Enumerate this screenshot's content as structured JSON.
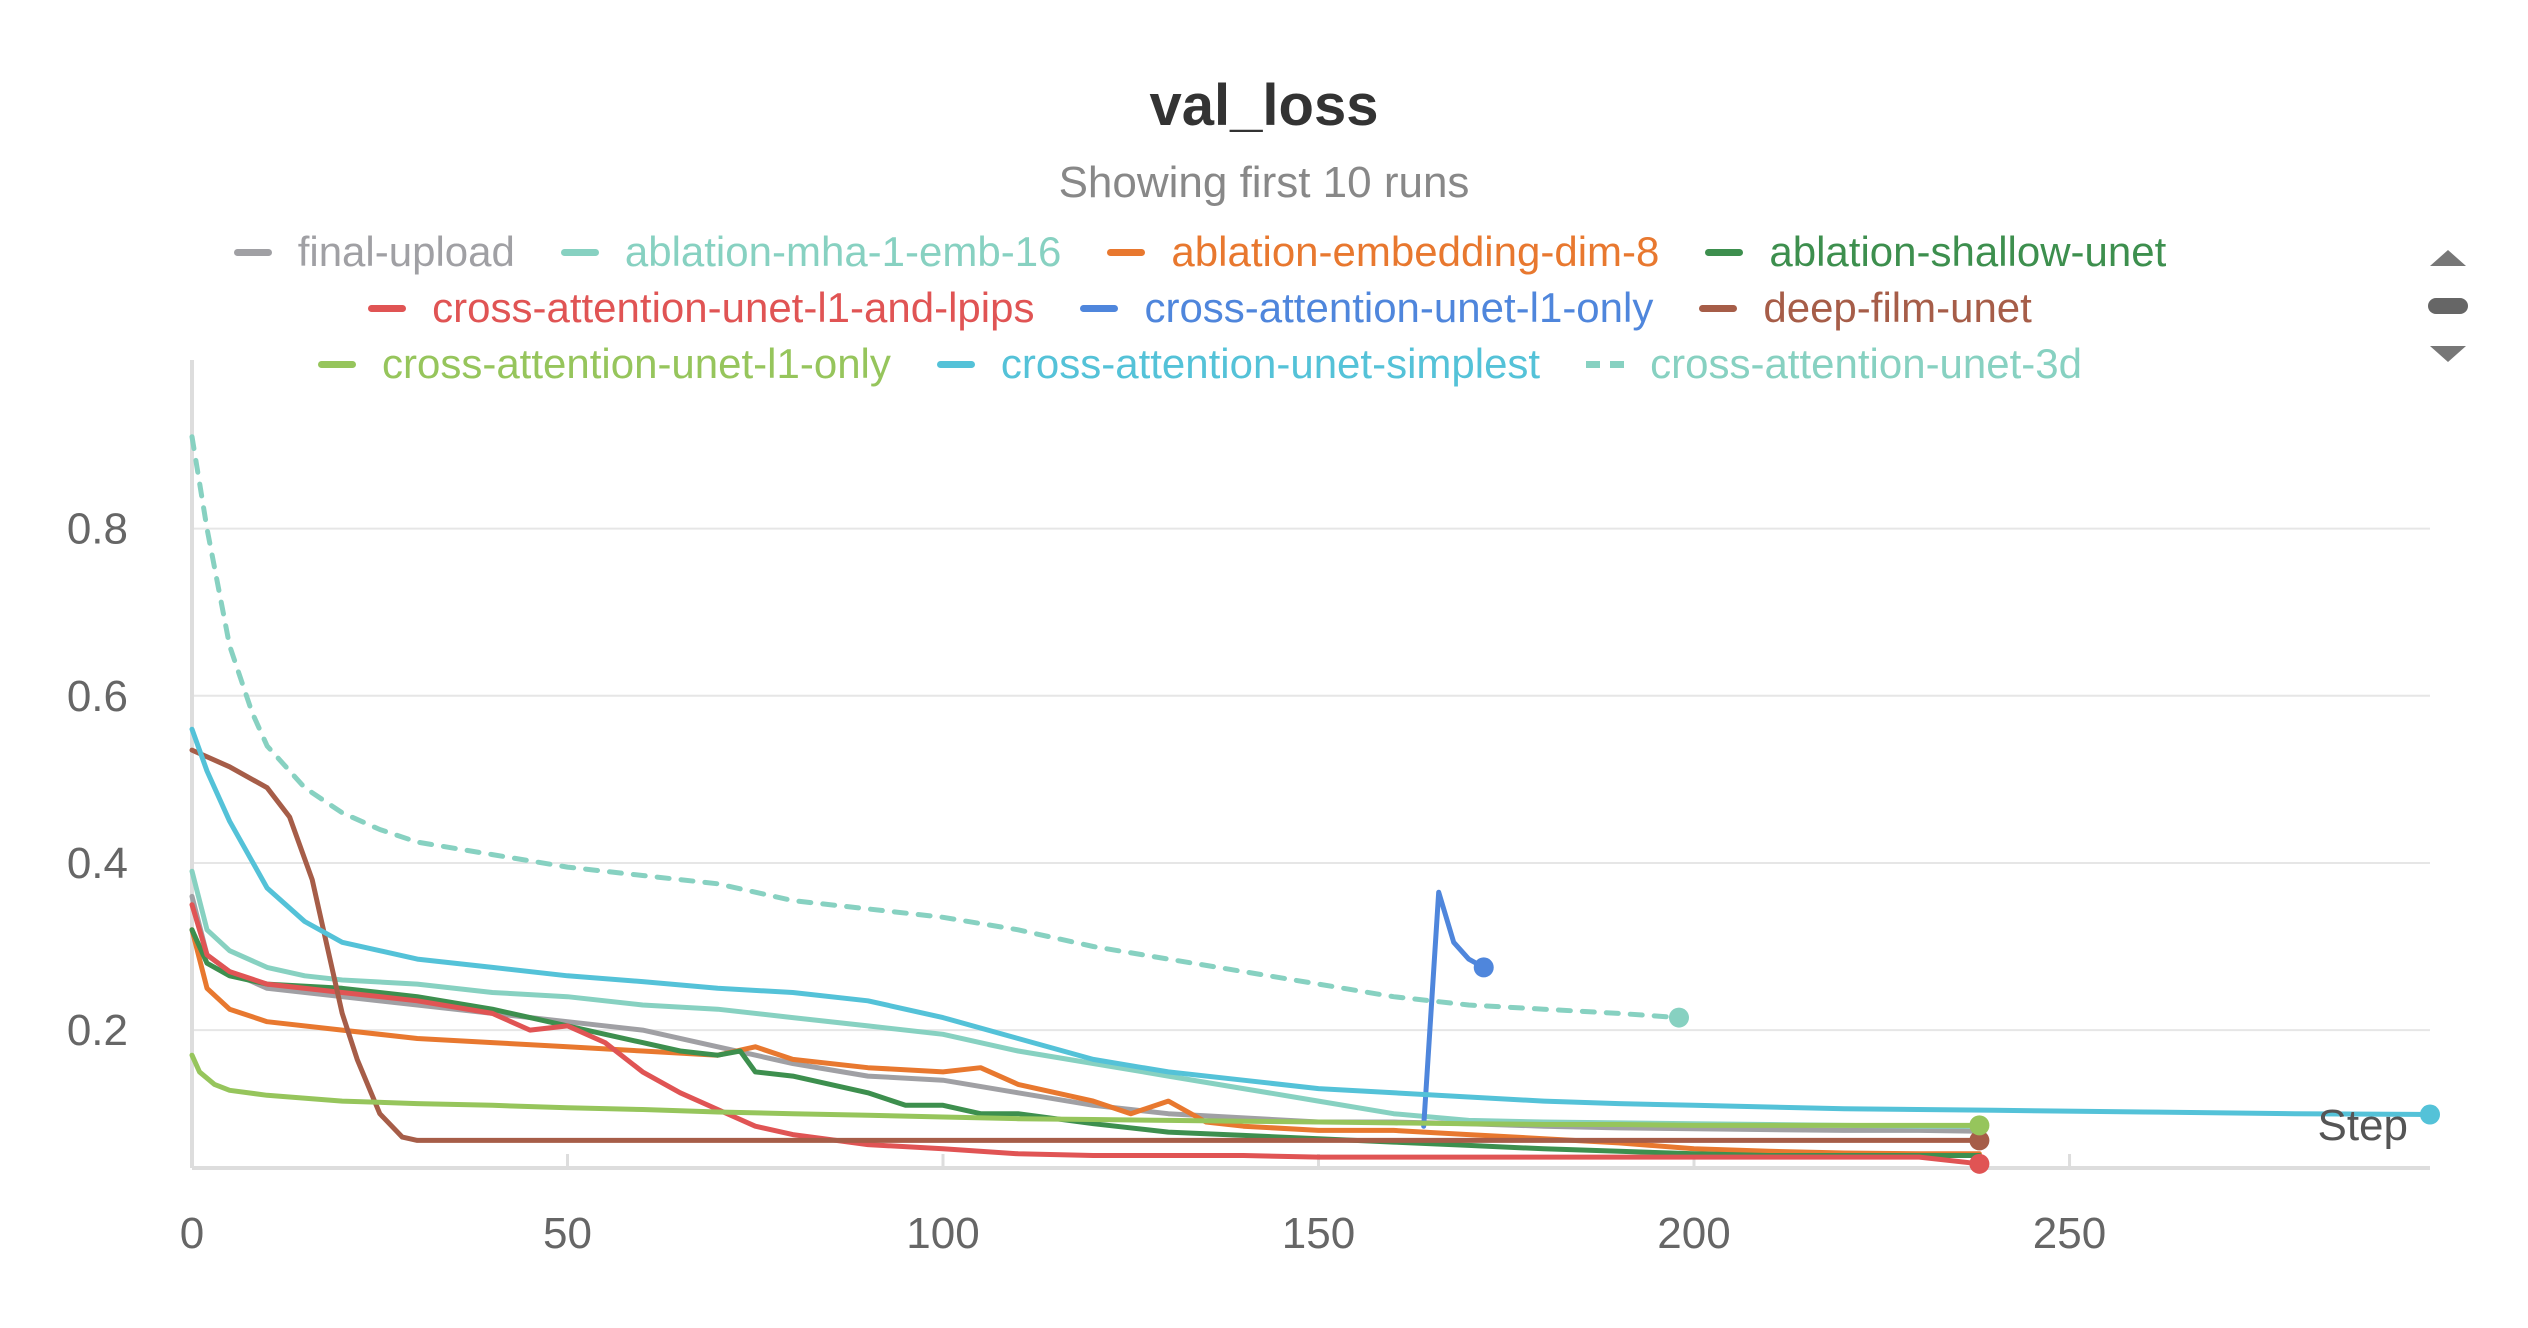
{
  "chart_data": {
    "type": "line",
    "title": "val_loss",
    "subtitle": "Showing first 10 runs",
    "xlabel": "Step",
    "ylabel": "",
    "xlim": [
      0,
      298
    ],
    "ylim": [
      0.035,
      0.93
    ],
    "x_ticks": [
      0,
      50,
      100,
      150,
      200,
      250
    ],
    "y_ticks": [
      0.2,
      0.4,
      0.6,
      0.8
    ],
    "grid": true,
    "legend_placement": "top",
    "series": [
      {
        "name": "final-upload",
        "color": "#a0a0a4",
        "dashed": false,
        "end_marker": false,
        "x": [
          0,
          2,
          5,
          10,
          20,
          30,
          40,
          50,
          60,
          70,
          80,
          90,
          100,
          110,
          120,
          125,
          130,
          140,
          150,
          160,
          170,
          180,
          190,
          200,
          210,
          220,
          230,
          238
        ],
        "y": [
          0.36,
          0.29,
          0.27,
          0.25,
          0.24,
          0.23,
          0.22,
          0.21,
          0.2,
          0.18,
          0.16,
          0.145,
          0.14,
          0.125,
          0.11,
          0.105,
          0.1,
          0.095,
          0.09,
          0.09,
          0.088,
          0.085,
          0.083,
          0.082,
          0.081,
          0.08,
          0.08,
          0.079
        ]
      },
      {
        "name": "ablation-mha-1-emb-16",
        "color": "#87d1c1",
        "dashed": false,
        "end_marker": false,
        "x": [
          0,
          2,
          5,
          10,
          15,
          20,
          30,
          40,
          50,
          60,
          70,
          80,
          90,
          100,
          110,
          120,
          130,
          140,
          150,
          160,
          170,
          180,
          190,
          200,
          210,
          220,
          230,
          238
        ],
        "y": [
          0.39,
          0.32,
          0.295,
          0.275,
          0.265,
          0.26,
          0.255,
          0.245,
          0.24,
          0.23,
          0.225,
          0.215,
          0.205,
          0.195,
          0.175,
          0.16,
          0.145,
          0.13,
          0.115,
          0.1,
          0.092,
          0.09,
          0.089,
          0.088,
          0.087,
          0.086,
          0.085,
          0.085
        ]
      },
      {
        "name": "ablation-embedding-dim-8",
        "color": "#e8782f",
        "dashed": false,
        "end_marker": false,
        "x": [
          0,
          2,
          5,
          10,
          20,
          30,
          40,
          50,
          60,
          70,
          75,
          80,
          90,
          100,
          105,
          110,
          120,
          125,
          130,
          135,
          140,
          150,
          160,
          170,
          180,
          190,
          200,
          210,
          220,
          230,
          238
        ],
        "y": [
          0.32,
          0.25,
          0.225,
          0.21,
          0.2,
          0.19,
          0.185,
          0.18,
          0.175,
          0.17,
          0.18,
          0.165,
          0.155,
          0.15,
          0.155,
          0.135,
          0.115,
          0.1,
          0.115,
          0.09,
          0.085,
          0.08,
          0.08,
          0.075,
          0.07,
          0.065,
          0.058,
          0.055,
          0.053,
          0.052,
          0.052
        ]
      },
      {
        "name": "ablation-shallow-unet",
        "color": "#3d8f4e",
        "dashed": false,
        "end_marker": false,
        "x": [
          0,
          2,
          5,
          10,
          20,
          30,
          40,
          50,
          60,
          65,
          70,
          73,
          75,
          80,
          90,
          95,
          100,
          105,
          110,
          120,
          130,
          140,
          150,
          160,
          170,
          180,
          190,
          200,
          210,
          220,
          230,
          238
        ],
        "y": [
          0.32,
          0.28,
          0.265,
          0.255,
          0.25,
          0.24,
          0.225,
          0.205,
          0.185,
          0.175,
          0.17,
          0.175,
          0.15,
          0.145,
          0.125,
          0.11,
          0.11,
          0.1,
          0.1,
          0.088,
          0.078,
          0.074,
          0.07,
          0.066,
          0.062,
          0.058,
          0.055,
          0.052,
          0.05,
          0.05,
          0.05,
          0.05
        ]
      },
      {
        "name": "cross-attention-unet-l1-and-lpips",
        "color": "#e05454",
        "dashed": false,
        "end_marker": true,
        "x": [
          0,
          2,
          5,
          10,
          20,
          30,
          40,
          45,
          50,
          55,
          60,
          65,
          70,
          75,
          80,
          90,
          100,
          110,
          120,
          130,
          140,
          150,
          160,
          170,
          180,
          190,
          200,
          210,
          220,
          230,
          238
        ],
        "y": [
          0.35,
          0.29,
          0.27,
          0.255,
          0.245,
          0.235,
          0.22,
          0.2,
          0.205,
          0.185,
          0.15,
          0.125,
          0.105,
          0.085,
          0.075,
          0.063,
          0.058,
          0.052,
          0.05,
          0.05,
          0.05,
          0.048,
          0.048,
          0.048,
          0.048,
          0.048,
          0.048,
          0.048,
          0.048,
          0.048,
          0.04
        ]
      },
      {
        "name": "cross-attention-unet-l1-only",
        "color": "#4f86dc",
        "dashed": false,
        "end_marker": true,
        "x": [
          164,
          166,
          168,
          170,
          172
        ],
        "y": [
          0.085,
          0.365,
          0.305,
          0.285,
          0.275
        ]
      },
      {
        "name": "deep-film-unet",
        "color": "#a65d48",
        "dashed": false,
        "end_marker": true,
        "x": [
          0,
          5,
          10,
          13,
          16,
          20,
          22,
          25,
          28,
          30,
          40,
          60,
          100,
          150,
          200,
          238
        ],
        "y": [
          0.535,
          0.515,
          0.49,
          0.455,
          0.38,
          0.22,
          0.165,
          0.1,
          0.072,
          0.068,
          0.068,
          0.068,
          0.068,
          0.068,
          0.068,
          0.068
        ]
      },
      {
        "name": "cross-attention-unet-l1-only",
        "color": "#96c55c",
        "dashed": false,
        "end_marker": true,
        "x": [
          0,
          1,
          3,
          5,
          10,
          20,
          30,
          40,
          50,
          60,
          70,
          80,
          90,
          100,
          110,
          120,
          130,
          140,
          150,
          160,
          170,
          180,
          190,
          200,
          210,
          220,
          230,
          238
        ],
        "y": [
          0.17,
          0.15,
          0.135,
          0.128,
          0.122,
          0.115,
          0.112,
          0.11,
          0.107,
          0.105,
          0.102,
          0.1,
          0.098,
          0.096,
          0.094,
          0.093,
          0.092,
          0.091,
          0.09,
          0.089,
          0.088,
          0.087,
          0.087,
          0.086,
          0.086,
          0.086,
          0.086,
          0.086
        ]
      },
      {
        "name": "cross-attention-unet-simplest",
        "color": "#54c2d8",
        "dashed": false,
        "end_marker": true,
        "x": [
          0,
          2,
          5,
          10,
          15,
          20,
          30,
          40,
          50,
          60,
          70,
          80,
          90,
          100,
          110,
          120,
          130,
          140,
          150,
          160,
          170,
          180,
          190,
          200,
          220,
          240,
          260,
          280,
          298
        ],
        "y": [
          0.56,
          0.51,
          0.45,
          0.37,
          0.33,
          0.305,
          0.285,
          0.275,
          0.265,
          0.258,
          0.25,
          0.245,
          0.235,
          0.215,
          0.19,
          0.165,
          0.15,
          0.14,
          0.13,
          0.125,
          0.12,
          0.115,
          0.112,
          0.11,
          0.106,
          0.104,
          0.102,
          0.1,
          0.099
        ]
      },
      {
        "name": "cross-attention-unet-3d",
        "color": "#87d1c1",
        "dashed": true,
        "end_marker": true,
        "x": [
          0,
          2,
          5,
          8,
          10,
          15,
          20,
          25,
          30,
          40,
          50,
          60,
          70,
          75,
          80,
          90,
          100,
          110,
          120,
          130,
          140,
          150,
          160,
          170,
          180,
          190,
          198
        ],
        "y": [
          0.91,
          0.8,
          0.66,
          0.58,
          0.54,
          0.49,
          0.46,
          0.44,
          0.425,
          0.41,
          0.395,
          0.385,
          0.375,
          0.365,
          0.355,
          0.345,
          0.335,
          0.32,
          0.3,
          0.285,
          0.27,
          0.255,
          0.24,
          0.23,
          0.225,
          0.22,
          0.215
        ]
      }
    ]
  },
  "legend": {
    "rows": [
      [
        0,
        1,
        2,
        3
      ],
      [
        4,
        5,
        6
      ],
      [
        7,
        8,
        9
      ]
    ],
    "scroll_icons": [
      "chevron-up-icon",
      "drag-handle-icon",
      "chevron-down-icon"
    ]
  }
}
